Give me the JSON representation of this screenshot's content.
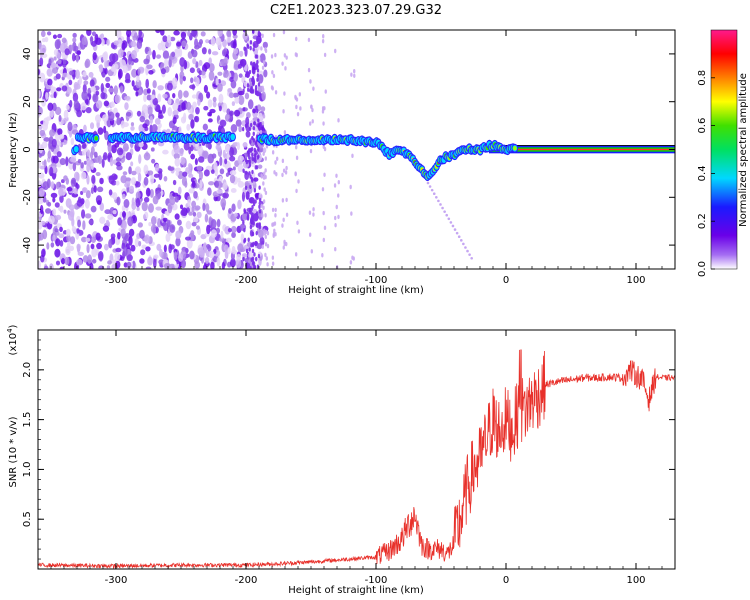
{
  "title": "C2E1.2023.323.07.29.G32",
  "chart_data": [
    {
      "type": "heatmap",
      "xlabel": "Height of straight line (km)",
      "ylabel": "Frequency (Hz)",
      "xlim": [
        -360,
        130
      ],
      "ylim": [
        -50,
        50
      ],
      "xticks": [
        -300,
        -200,
        -100,
        0,
        100
      ],
      "yticks": [
        -40,
        -20,
        0,
        20,
        40
      ],
      "colorbar": {
        "label": "Normalized spectral amplitude",
        "range": [
          0,
          1
        ],
        "ticks": [
          "0.0",
          "0.2",
          "0.4",
          "0.6",
          "0.8"
        ],
        "colors": [
          "#ffffff",
          "#7a2ee8",
          "#1a1aff",
          "#00d8ff",
          "#00e000",
          "#ffff00",
          "#ff8000",
          "#ff0000",
          "#ff1493"
        ]
      },
      "features": {
        "noise_region_x": [
          -360,
          -190
        ],
        "carrier_track": [
          {
            "x": -330,
            "y": 5
          },
          {
            "x": -300,
            "y": 5
          },
          {
            "x": -260,
            "y": 5
          },
          {
            "x": -200,
            "y": 5
          },
          {
            "x": -180,
            "y": 4
          },
          {
            "x": -150,
            "y": 4
          },
          {
            "x": -120,
            "y": 4
          },
          {
            "x": -100,
            "y": 3
          },
          {
            "x": -90,
            "y": -2
          },
          {
            "x": -80,
            "y": 0
          },
          {
            "x": -70,
            "y": -5
          },
          {
            "x": -60,
            "y": -12
          },
          {
            "x": -50,
            "y": -4
          },
          {
            "x": -40,
            "y": -2
          },
          {
            "x": -30,
            "y": 0
          },
          {
            "x": -20,
            "y": 0
          },
          {
            "x": -10,
            "y": 2
          },
          {
            "x": 0,
            "y": 0
          },
          {
            "x": 10,
            "y": 0
          },
          {
            "x": 130,
            "y": 0
          }
        ]
      }
    },
    {
      "type": "line",
      "xlabel": "Height of straight line (km)",
      "ylabel": "SNR (10 * v/v)",
      "yscale_label": "(x10",
      "yscale_exp": "4",
      "xlim": [
        -360,
        130
      ],
      "ylim": [
        0,
        2.4
      ],
      "xticks": [
        -300,
        -200,
        -100,
        0,
        100
      ],
      "yticks": [
        "0.5",
        "1.0",
        "1.5",
        "2.0"
      ],
      "line_color": "#e8302a",
      "series": [
        {
          "x": [
            -360,
            -300,
            -250,
            -200,
            -180,
            -150,
            -120,
            -100,
            -90,
            -80,
            -75,
            -70,
            -65,
            -60,
            -50,
            -45,
            -40,
            -35,
            -30,
            -25,
            -20,
            -15,
            -10,
            -5,
            0,
            5,
            10,
            15,
            20,
            25,
            30,
            40,
            50,
            60,
            70,
            80,
            90,
            95,
            100,
            105,
            110,
            115,
            120,
            130
          ],
          "y": [
            0.04,
            0.03,
            0.04,
            0.04,
            0.05,
            0.07,
            0.1,
            0.12,
            0.18,
            0.3,
            0.45,
            0.55,
            0.25,
            0.2,
            0.2,
            0.15,
            0.25,
            0.5,
            0.8,
            1.0,
            1.1,
            1.3,
            1.5,
            1.4,
            1.5,
            1.4,
            1.6,
            1.6,
            1.7,
            1.75,
            1.85,
            1.88,
            1.9,
            1.92,
            1.92,
            1.93,
            1.92,
            2.0,
            1.95,
            1.9,
            1.7,
            1.93,
            1.92,
            1.92
          ]
        }
      ]
    }
  ]
}
